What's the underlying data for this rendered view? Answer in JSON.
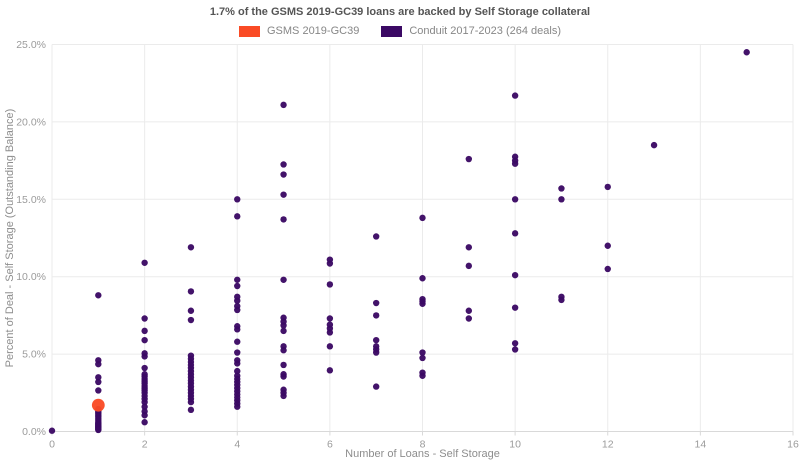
{
  "title": "1.7% of the GSMS 2019-GC39 loans are backed by Self Storage collateral",
  "legend": [
    {
      "label": "GSMS 2019-GC39",
      "color": "#fa4b25"
    },
    {
      "label": "Conduit 2017-2023 (264 deals)",
      "color": "#3b0964"
    }
  ],
  "colors": {
    "gsms_orange": "#fa4b25",
    "conduit_purple": "#3b0964",
    "grid": "#ebebeb",
    "axis_line": "#d9d9d9",
    "tick_text": "#9b9b9b"
  },
  "chart_data": {
    "type": "scatter",
    "title": "1.7% of the GSMS 2019-GC39 loans are backed by Self Storage collateral",
    "xlabel": "Number of Loans - Self Storage",
    "ylabel": "Percent of Deal - Self Storage (Outstanding Balance)",
    "xlim": [
      0,
      16
    ],
    "ylim": [
      0,
      25
    ],
    "grid": true,
    "legend_position": "top-center",
    "x_ticks": [
      0,
      2,
      4,
      6,
      8,
      10,
      12,
      14,
      16
    ],
    "y_ticks": [
      {
        "v": 0,
        "label": "0.0%"
      },
      {
        "v": 5,
        "label": "5.0%"
      },
      {
        "v": 10,
        "label": "10.0%"
      },
      {
        "v": 15,
        "label": "15.0%"
      },
      {
        "v": 20,
        "label": "20.0%"
      },
      {
        "v": 25,
        "label": "25.0%"
      }
    ],
    "series": [
      {
        "name": "GSMS 2019-GC39",
        "color": "#fa4b25",
        "marker_radius": 6.4,
        "points": [
          [
            1,
            1.7
          ]
        ]
      },
      {
        "name": "Conduit 2017-2023 (264 deals)",
        "color": "#3b0964",
        "marker_radius": 3.2,
        "points": [
          [
            0,
            0.05
          ],
          [
            1,
            8.8
          ],
          [
            1,
            4.6
          ],
          [
            1,
            4.35
          ],
          [
            1,
            3.5
          ],
          [
            1,
            3.2
          ],
          [
            1,
            2.65
          ],
          [
            1,
            1.45
          ],
          [
            1,
            1.35
          ],
          [
            1,
            1.25
          ],
          [
            1,
            1.15
          ],
          [
            1,
            1.05
          ],
          [
            1,
            0.95
          ],
          [
            1,
            0.85
          ],
          [
            1,
            0.75
          ],
          [
            1,
            0.65
          ],
          [
            1,
            0.55
          ],
          [
            1,
            0.5
          ],
          [
            1,
            0.45
          ],
          [
            1,
            0.4
          ],
          [
            1,
            0.35
          ],
          [
            1,
            0.3
          ],
          [
            1,
            0.25
          ],
          [
            1,
            0.2
          ],
          [
            1,
            0.15
          ],
          [
            1,
            0.1
          ],
          [
            2,
            10.9
          ],
          [
            2,
            7.3
          ],
          [
            2,
            6.5
          ],
          [
            2,
            5.9
          ],
          [
            2,
            5.05
          ],
          [
            2,
            4.85
          ],
          [
            2,
            4.1
          ],
          [
            2,
            3.7
          ],
          [
            2,
            3.55
          ],
          [
            2,
            3.4
          ],
          [
            2,
            3.25
          ],
          [
            2,
            3.1
          ],
          [
            2,
            2.95
          ],
          [
            2,
            2.8
          ],
          [
            2,
            2.65
          ],
          [
            2,
            2.5
          ],
          [
            2,
            2.3
          ],
          [
            2,
            2.1
          ],
          [
            2,
            1.9
          ],
          [
            2,
            1.6
          ],
          [
            2,
            1.3
          ],
          [
            2,
            1.05
          ],
          [
            2,
            0.6
          ],
          [
            3,
            11.9
          ],
          [
            3,
            9.05
          ],
          [
            3,
            7.8
          ],
          [
            3,
            7.2
          ],
          [
            3,
            4.9
          ],
          [
            3,
            4.7
          ],
          [
            3,
            4.5
          ],
          [
            3,
            4.3
          ],
          [
            3,
            4.1
          ],
          [
            3,
            3.9
          ],
          [
            3,
            3.7
          ],
          [
            3,
            3.5
          ],
          [
            3,
            3.3
          ],
          [
            3,
            3.1
          ],
          [
            3,
            2.9
          ],
          [
            3,
            2.7
          ],
          [
            3,
            2.5
          ],
          [
            3,
            2.3
          ],
          [
            3,
            2.1
          ],
          [
            3,
            1.9
          ],
          [
            3,
            1.4
          ],
          [
            4,
            15.0
          ],
          [
            4,
            13.9
          ],
          [
            4,
            9.8
          ],
          [
            4,
            9.4
          ],
          [
            4,
            8.7
          ],
          [
            4,
            8.45
          ],
          [
            4,
            8.1
          ],
          [
            4,
            7.85
          ],
          [
            4,
            6.8
          ],
          [
            4,
            6.6
          ],
          [
            4,
            5.8
          ],
          [
            4,
            5.1
          ],
          [
            4,
            4.6
          ],
          [
            4,
            4.4
          ],
          [
            4,
            3.9
          ],
          [
            4,
            3.6
          ],
          [
            4,
            3.4
          ],
          [
            4,
            3.2
          ],
          [
            4,
            3.0
          ],
          [
            4,
            2.8
          ],
          [
            4,
            2.6
          ],
          [
            4,
            2.4
          ],
          [
            4,
            2.2
          ],
          [
            4,
            2.0
          ],
          [
            4,
            1.8
          ],
          [
            4,
            1.6
          ],
          [
            5,
            21.1
          ],
          [
            5,
            17.25
          ],
          [
            5,
            16.6
          ],
          [
            5,
            15.3
          ],
          [
            5,
            13.7
          ],
          [
            5,
            9.8
          ],
          [
            5,
            7.35
          ],
          [
            5,
            7.1
          ],
          [
            5,
            6.85
          ],
          [
            5,
            6.5
          ],
          [
            5,
            5.5
          ],
          [
            5,
            5.25
          ],
          [
            5,
            4.3
          ],
          [
            5,
            3.7
          ],
          [
            5,
            3.55
          ],
          [
            5,
            2.7
          ],
          [
            5,
            2.5
          ],
          [
            5,
            2.3
          ],
          [
            6,
            11.1
          ],
          [
            6,
            10.85
          ],
          [
            6,
            9.5
          ],
          [
            6,
            7.3
          ],
          [
            6,
            6.9
          ],
          [
            6,
            6.65
          ],
          [
            6,
            6.4
          ],
          [
            6,
            5.5
          ],
          [
            6,
            3.95
          ],
          [
            7,
            12.6
          ],
          [
            7,
            8.3
          ],
          [
            7,
            7.5
          ],
          [
            7,
            5.9
          ],
          [
            7,
            5.5
          ],
          [
            7,
            5.3
          ],
          [
            7,
            5.1
          ],
          [
            7,
            2.9
          ],
          [
            8,
            13.8
          ],
          [
            8,
            9.9
          ],
          [
            8,
            8.55
          ],
          [
            8,
            8.4
          ],
          [
            8,
            8.25
          ],
          [
            8,
            5.1
          ],
          [
            8,
            4.75
          ],
          [
            8,
            3.8
          ],
          [
            8,
            3.6
          ],
          [
            9,
            17.6
          ],
          [
            9,
            11.9
          ],
          [
            9,
            10.7
          ],
          [
            9,
            7.8
          ],
          [
            9,
            7.3
          ],
          [
            10,
            21.7
          ],
          [
            10,
            17.75
          ],
          [
            10,
            17.5
          ],
          [
            10,
            17.3
          ],
          [
            10,
            15.0
          ],
          [
            10,
            12.8
          ],
          [
            10,
            10.1
          ],
          [
            10,
            8.0
          ],
          [
            10,
            5.7
          ],
          [
            10,
            5.3
          ],
          [
            11,
            15.7
          ],
          [
            11,
            15.0
          ],
          [
            11,
            8.7
          ],
          [
            11,
            8.5
          ],
          [
            12,
            15.8
          ],
          [
            12,
            12.0
          ],
          [
            12,
            10.5
          ],
          [
            13,
            18.5
          ],
          [
            15,
            24.5
          ]
        ]
      }
    ]
  }
}
